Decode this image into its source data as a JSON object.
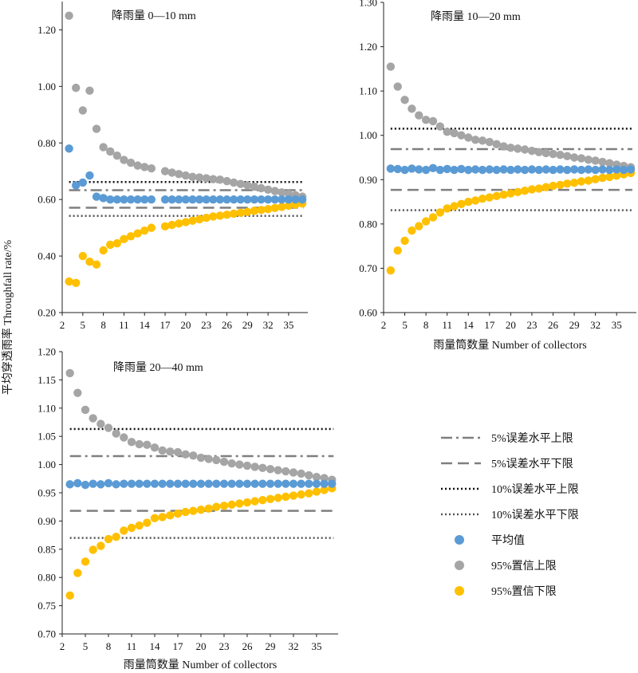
{
  "figure": {
    "ylabel": "平均穿透雨率 Throughfall rate/%",
    "legend": [
      {
        "label": "5%误差水平上限",
        "style": "dashdot",
        "color": "#7f7f7f"
      },
      {
        "label": "5%误差水平下限",
        "style": "dash",
        "color": "#7f7f7f"
      },
      {
        "label": "10%误差水平上限",
        "style": "dotted",
        "color": "#111111"
      },
      {
        "label": "10%误差水平下限",
        "style": "dotted",
        "color": "#555555"
      },
      {
        "label": "平均值",
        "style": "marker",
        "color": "#5b9bd5"
      },
      {
        "label": "95%置信上限",
        "style": "marker",
        "color": "#a5a5a5"
      },
      {
        "label": "95%置信下限",
        "style": "marker",
        "color": "#ffc000"
      }
    ],
    "colors": {
      "mean": "#5b9bd5",
      "upper": "#a5a5a5",
      "lower": "#ffc000",
      "dash": "#7f7f7f",
      "dot10u": "#111111",
      "dot10l": "#555555"
    }
  },
  "chart_data": [
    {
      "type": "scatter",
      "title": "降雨量 0—10 mm",
      "xlabel": "",
      "ylabel": "平均穿透雨率 Throughfall rate/%",
      "xlim": [
        2,
        37.8
      ],
      "ylim": [
        0.2,
        1.3
      ],
      "x_ticks": [
        2,
        5,
        8,
        11,
        14,
        17,
        20,
        23,
        26,
        29,
        32,
        35
      ],
      "y_ticks": [
        0.2,
        0.4,
        0.6,
        0.8,
        1.0,
        1.2
      ],
      "y_tick_labels": [
        "0.20",
        "0.40",
        "0.60",
        "0.80",
        "1.00",
        "1.20"
      ],
      "x": [
        3,
        4,
        5,
        6,
        7,
        8,
        9,
        10,
        11,
        12,
        13,
        14,
        15,
        16,
        17,
        18,
        19,
        20,
        21,
        22,
        23,
        24,
        25,
        26,
        27,
        28,
        29,
        30,
        31,
        32,
        33,
        34,
        35,
        36,
        37
      ],
      "series": [
        {
          "name": "平均值",
          "values": [
            0.78,
            0.65,
            0.66,
            0.685,
            0.61,
            0.605,
            0.6,
            0.6,
            0.6,
            0.6,
            0.6,
            0.6,
            0.6,
            null,
            0.6,
            0.6,
            0.6,
            0.6,
            0.6,
            0.6,
            0.6,
            0.6,
            0.6,
            0.6,
            0.6,
            0.6,
            0.6,
            0.6,
            0.6,
            0.6,
            0.6,
            0.6,
            0.6,
            0.6,
            0.6
          ]
        },
        {
          "name": "95%置信上限",
          "values": [
            1.25,
            0.995,
            0.915,
            0.985,
            0.85,
            0.785,
            0.77,
            0.755,
            0.74,
            0.73,
            0.72,
            0.715,
            0.71,
            null,
            0.7,
            0.695,
            0.69,
            0.685,
            0.68,
            0.678,
            0.675,
            0.672,
            0.67,
            0.665,
            0.66,
            0.655,
            0.65,
            0.645,
            0.64,
            0.635,
            0.63,
            0.625,
            0.62,
            0.615,
            0.61
          ]
        },
        {
          "name": "95%置信下限",
          "values": [
            0.31,
            0.305,
            0.4,
            0.38,
            0.37,
            0.42,
            0.44,
            0.445,
            0.46,
            0.47,
            0.48,
            0.49,
            0.5,
            null,
            0.505,
            0.51,
            0.515,
            0.52,
            0.525,
            0.53,
            0.535,
            0.54,
            0.543,
            0.546,
            0.55,
            0.553,
            0.556,
            0.56,
            0.563,
            0.566,
            0.57,
            0.574,
            0.578,
            0.582,
            0.586
          ]
        }
      ],
      "reference_lines": [
        {
          "name": "10%误差水平上限",
          "y": 0.662
        },
        {
          "name": "5%误差水平上限",
          "y": 0.633
        },
        {
          "name": "5%误差水平下限",
          "y": 0.571
        },
        {
          "name": "10%误差水平下限",
          "y": 0.542
        }
      ]
    },
    {
      "type": "scatter",
      "title": "降雨量 10—20 mm",
      "xlabel": "雨量筒数量 Number of collectors",
      "ylabel": "",
      "xlim": [
        2,
        37.8
      ],
      "ylim": [
        0.6,
        1.3
      ],
      "x_ticks": [
        2,
        5,
        8,
        11,
        14,
        17,
        20,
        23,
        26,
        29,
        32,
        35
      ],
      "y_ticks": [
        0.6,
        0.7,
        0.8,
        0.9,
        1.0,
        1.1,
        1.2,
        1.3
      ],
      "y_tick_labels": [
        "0.60",
        "0.70",
        "0.80",
        "0.90",
        "1.00",
        "1.10",
        "1.20",
        "1.30"
      ],
      "x": [
        3,
        4,
        5,
        6,
        7,
        8,
        9,
        10,
        11,
        12,
        13,
        14,
        15,
        16,
        17,
        18,
        19,
        20,
        21,
        22,
        23,
        24,
        25,
        26,
        27,
        28,
        29,
        30,
        31,
        32,
        33,
        34,
        35,
        36,
        37
      ],
      "series": [
        {
          "name": "平均值",
          "values": [
            0.925,
            0.924,
            0.922,
            0.925,
            0.923,
            0.922,
            0.926,
            0.922,
            0.924,
            0.922,
            0.924,
            0.922,
            0.923,
            0.922,
            0.923,
            0.922,
            0.923,
            0.922,
            0.923,
            0.922,
            0.923,
            0.922,
            0.923,
            0.922,
            0.923,
            0.922,
            0.923,
            0.922,
            0.923,
            0.922,
            0.923,
            0.922,
            0.923,
            0.922,
            0.923
          ]
        },
        {
          "name": "95%置信上限",
          "values": [
            1.155,
            1.11,
            1.08,
            1.06,
            1.045,
            1.035,
            1.032,
            1.02,
            1.008,
            1.005,
            1.0,
            0.995,
            0.99,
            0.988,
            0.985,
            0.98,
            0.975,
            0.972,
            0.97,
            0.968,
            0.965,
            0.962,
            0.96,
            0.958,
            0.956,
            0.953,
            0.95,
            0.948,
            0.945,
            0.943,
            0.94,
            0.937,
            0.934,
            0.931,
            0.928
          ]
        },
        {
          "name": "95%置信下限",
          "values": [
            0.695,
            0.74,
            0.762,
            0.785,
            0.795,
            0.806,
            0.815,
            0.826,
            0.835,
            0.84,
            0.845,
            0.85,
            0.853,
            0.857,
            0.86,
            0.863,
            0.866,
            0.869,
            0.872,
            0.875,
            0.878,
            0.88,
            0.883,
            0.886,
            0.888,
            0.891,
            0.893,
            0.896,
            0.898,
            0.901,
            0.904,
            0.906,
            0.909,
            0.912,
            0.915
          ]
        }
      ],
      "reference_lines": [
        {
          "name": "10%误差水平上限",
          "y": 1.015
        },
        {
          "name": "5%误差水平上限",
          "y": 0.969
        },
        {
          "name": "5%误差水平下限",
          "y": 0.877
        },
        {
          "name": "10%误差水平下限",
          "y": 0.831
        }
      ]
    },
    {
      "type": "scatter",
      "title": "降雨量 20—40 mm",
      "xlabel": "雨量筒数量 Number of collectors",
      "ylabel": "",
      "xlim": [
        2,
        37.8
      ],
      "ylim": [
        0.7,
        1.2
      ],
      "x_ticks": [
        2,
        5,
        8,
        11,
        14,
        17,
        20,
        23,
        26,
        29,
        32,
        35
      ],
      "y_ticks": [
        0.7,
        0.75,
        0.8,
        0.85,
        0.9,
        0.95,
        1.0,
        1.05,
        1.1,
        1.15,
        1.2
      ],
      "y_tick_labels": [
        "0.70",
        "0.75",
        "0.80",
        "0.85",
        "0.90",
        "0.95",
        "1.00",
        "1.05",
        "1.10",
        "1.15",
        "1.20"
      ],
      "x": [
        3,
        4,
        5,
        6,
        7,
        8,
        9,
        10,
        11,
        12,
        13,
        14,
        15,
        16,
        17,
        18,
        19,
        20,
        21,
        22,
        23,
        24,
        25,
        26,
        27,
        28,
        29,
        30,
        31,
        32,
        33,
        34,
        35,
        36,
        37
      ],
      "series": [
        {
          "name": "平均值",
          "values": [
            0.965,
            0.967,
            0.964,
            0.966,
            0.965,
            0.967,
            0.965,
            0.966,
            0.966,
            0.966,
            0.966,
            0.966,
            0.966,
            0.966,
            0.966,
            0.966,
            0.966,
            0.966,
            0.966,
            0.966,
            0.966,
            0.966,
            0.966,
            0.966,
            0.966,
            0.966,
            0.966,
            0.966,
            0.966,
            0.966,
            0.966,
            0.966,
            0.966,
            0.966,
            0.966
          ]
        },
        {
          "name": "95%置信上限",
          "values": [
            1.162,
            1.127,
            1.097,
            1.082,
            1.072,
            1.065,
            1.055,
            1.048,
            1.04,
            1.036,
            1.035,
            1.03,
            1.025,
            1.023,
            1.022,
            1.018,
            1.016,
            1.012,
            1.01,
            1.008,
            1.005,
            1.002,
            1.0,
            0.998,
            0.996,
            0.994,
            0.992,
            0.99,
            0.988,
            0.986,
            0.984,
            0.981,
            0.978,
            0.976,
            0.973
          ]
        },
        {
          "name": "95%置信下限",
          "values": [
            0.768,
            0.808,
            0.828,
            0.849,
            0.856,
            0.868,
            0.872,
            0.883,
            0.888,
            0.892,
            0.897,
            0.905,
            0.907,
            0.91,
            0.913,
            0.916,
            0.918,
            0.92,
            0.922,
            0.925,
            0.927,
            0.929,
            0.931,
            0.933,
            0.935,
            0.937,
            0.939,
            0.941,
            0.943,
            0.945,
            0.947,
            0.949,
            0.952,
            0.955,
            0.958
          ]
        }
      ],
      "reference_lines": [
        {
          "name": "10%误差水平上限",
          "y": 1.063
        },
        {
          "name": "5%误差水平上限",
          "y": 1.015
        },
        {
          "name": "5%误差水平下限",
          "y": 0.918
        },
        {
          "name": "10%误差水平下限",
          "y": 0.87
        }
      ]
    }
  ]
}
